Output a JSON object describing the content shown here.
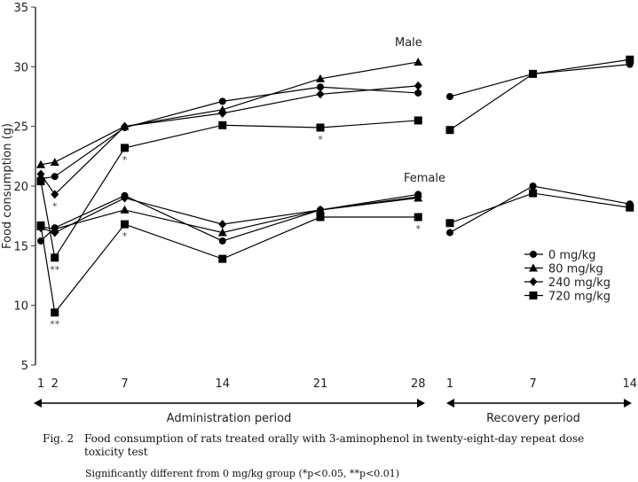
{
  "chart_data": {
    "type": "line",
    "ylabel": "Food consumption (g)",
    "ylim": [
      5,
      35
    ],
    "yticks": [
      5,
      10,
      15,
      20,
      25,
      30,
      35
    ],
    "periods": [
      {
        "name": "Administration period",
        "x": [
          1,
          2,
          7,
          14,
          21,
          28
        ],
        "xticks": [
          1,
          2,
          7,
          14,
          21,
          28
        ]
      },
      {
        "name": "Recovery period",
        "x": [
          1,
          7,
          14
        ],
        "xticks": [
          1,
          7,
          14
        ]
      }
    ],
    "groups": [
      {
        "label": "Male",
        "series": [
          {
            "name": "0 mg/kg",
            "marker": "circle",
            "admin": [
              20.6,
              20.8,
              24.9,
              27.1,
              28.3,
              27.8
            ],
            "recovery": [
              27.5,
              29.4,
              30.2
            ],
            "sig": []
          },
          {
            "name": "80 mg/kg",
            "marker": "triangle",
            "admin": [
              21.8,
              22.0,
              25.0,
              26.4,
              29.0,
              30.4
            ],
            "recovery": null,
            "sig": []
          },
          {
            "name": "240 mg/kg",
            "marker": "diamond",
            "admin": [
              21.0,
              19.3,
              25.0,
              26.1,
              27.7,
              28.4
            ],
            "recovery": null,
            "sig": [
              {
                "day": 2,
                "mark": "*"
              }
            ]
          },
          {
            "name": "720 mg/kg",
            "marker": "square",
            "admin": [
              20.4,
              14.0,
              23.2,
              25.1,
              24.9,
              25.5
            ],
            "recovery": [
              24.7,
              29.4,
              30.6
            ],
            "sig": [
              {
                "day": 2,
                "mark": "**"
              },
              {
                "day": 7,
                "mark": "*"
              },
              {
                "day": 21,
                "mark": "*"
              }
            ]
          }
        ]
      },
      {
        "label": "Female",
        "series": [
          {
            "name": "0 mg/kg",
            "marker": "circle",
            "admin": [
              15.4,
              16.5,
              19.2,
              15.4,
              18.0,
              19.3
            ],
            "recovery": [
              16.1,
              20.0,
              18.5
            ],
            "sig": []
          },
          {
            "name": "80 mg/kg",
            "marker": "triangle",
            "admin": [
              16.6,
              16.4,
              18.0,
              16.1,
              18.0,
              19.0
            ],
            "recovery": null,
            "sig": []
          },
          {
            "name": "240 mg/kg",
            "marker": "diamond",
            "admin": [
              16.5,
              16.1,
              19.0,
              16.8,
              18.0,
              19.1
            ],
            "recovery": null,
            "sig": []
          },
          {
            "name": "720 mg/kg",
            "marker": "square",
            "admin": [
              16.7,
              9.4,
              16.8,
              13.9,
              17.4,
              17.4
            ],
            "recovery": [
              16.9,
              19.4,
              18.2
            ],
            "sig": [
              {
                "day": 2,
                "mark": "**"
              },
              {
                "day": 7,
                "mark": "*"
              },
              {
                "day": 28,
                "mark": "*"
              }
            ]
          }
        ]
      }
    ],
    "legend": [
      "0 mg/kg",
      "80 mg/kg",
      "240 mg/kg",
      "720 mg/kg"
    ],
    "legend_position": "right"
  },
  "caption": {
    "fig": "Fig. 2",
    "title": "Food consumption of rats treated orally with 3-aminophenol in twenty-eight-day repeat dose toxicity test",
    "note": "Significantly different from 0 mg/kg group (*p<0.05, **p<0.01)"
  }
}
